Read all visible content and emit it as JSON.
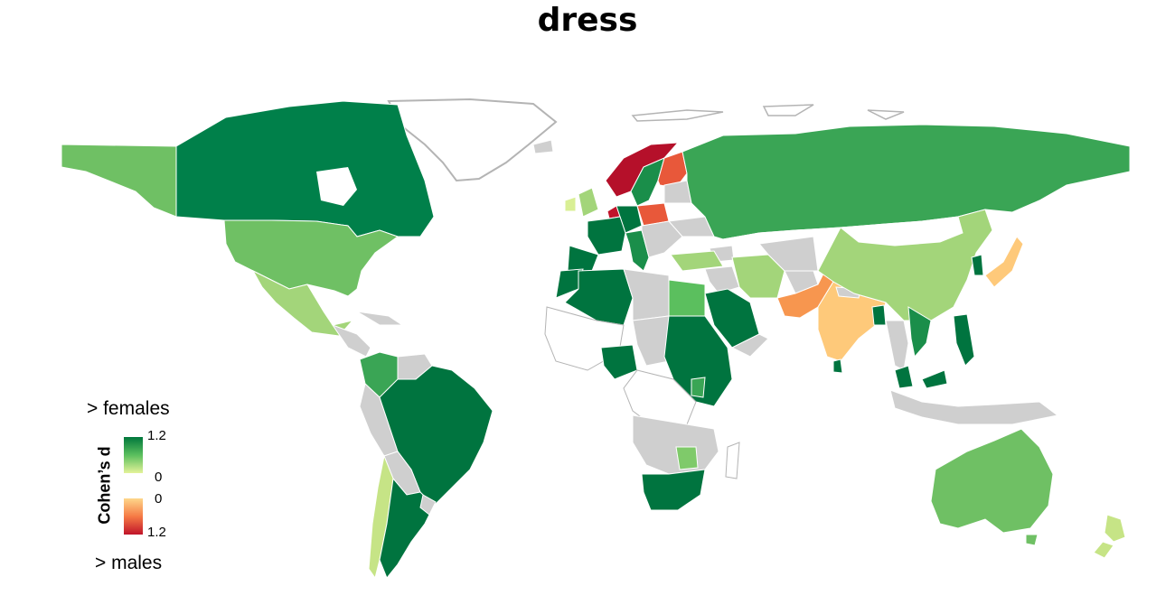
{
  "title": "dress",
  "legend": {
    "axis_label": "Cohen’s d",
    "top_label": "> females",
    "bottom_label": "> males",
    "female_scale": {
      "max_label": "1.2",
      "min_label": "0",
      "colors": [
        "#e4f39a",
        "#5bbf5e",
        "#00773c"
      ]
    },
    "male_scale": {
      "min_label": "0",
      "max_label": "1.2",
      "colors": [
        "#fed78a",
        "#f57a45",
        "#c0142a"
      ]
    }
  },
  "colors": {
    "no_data": "#cfcfcf",
    "border": "#ffffff",
    "unfilled_outline": "#b4b4b4"
  }
}
